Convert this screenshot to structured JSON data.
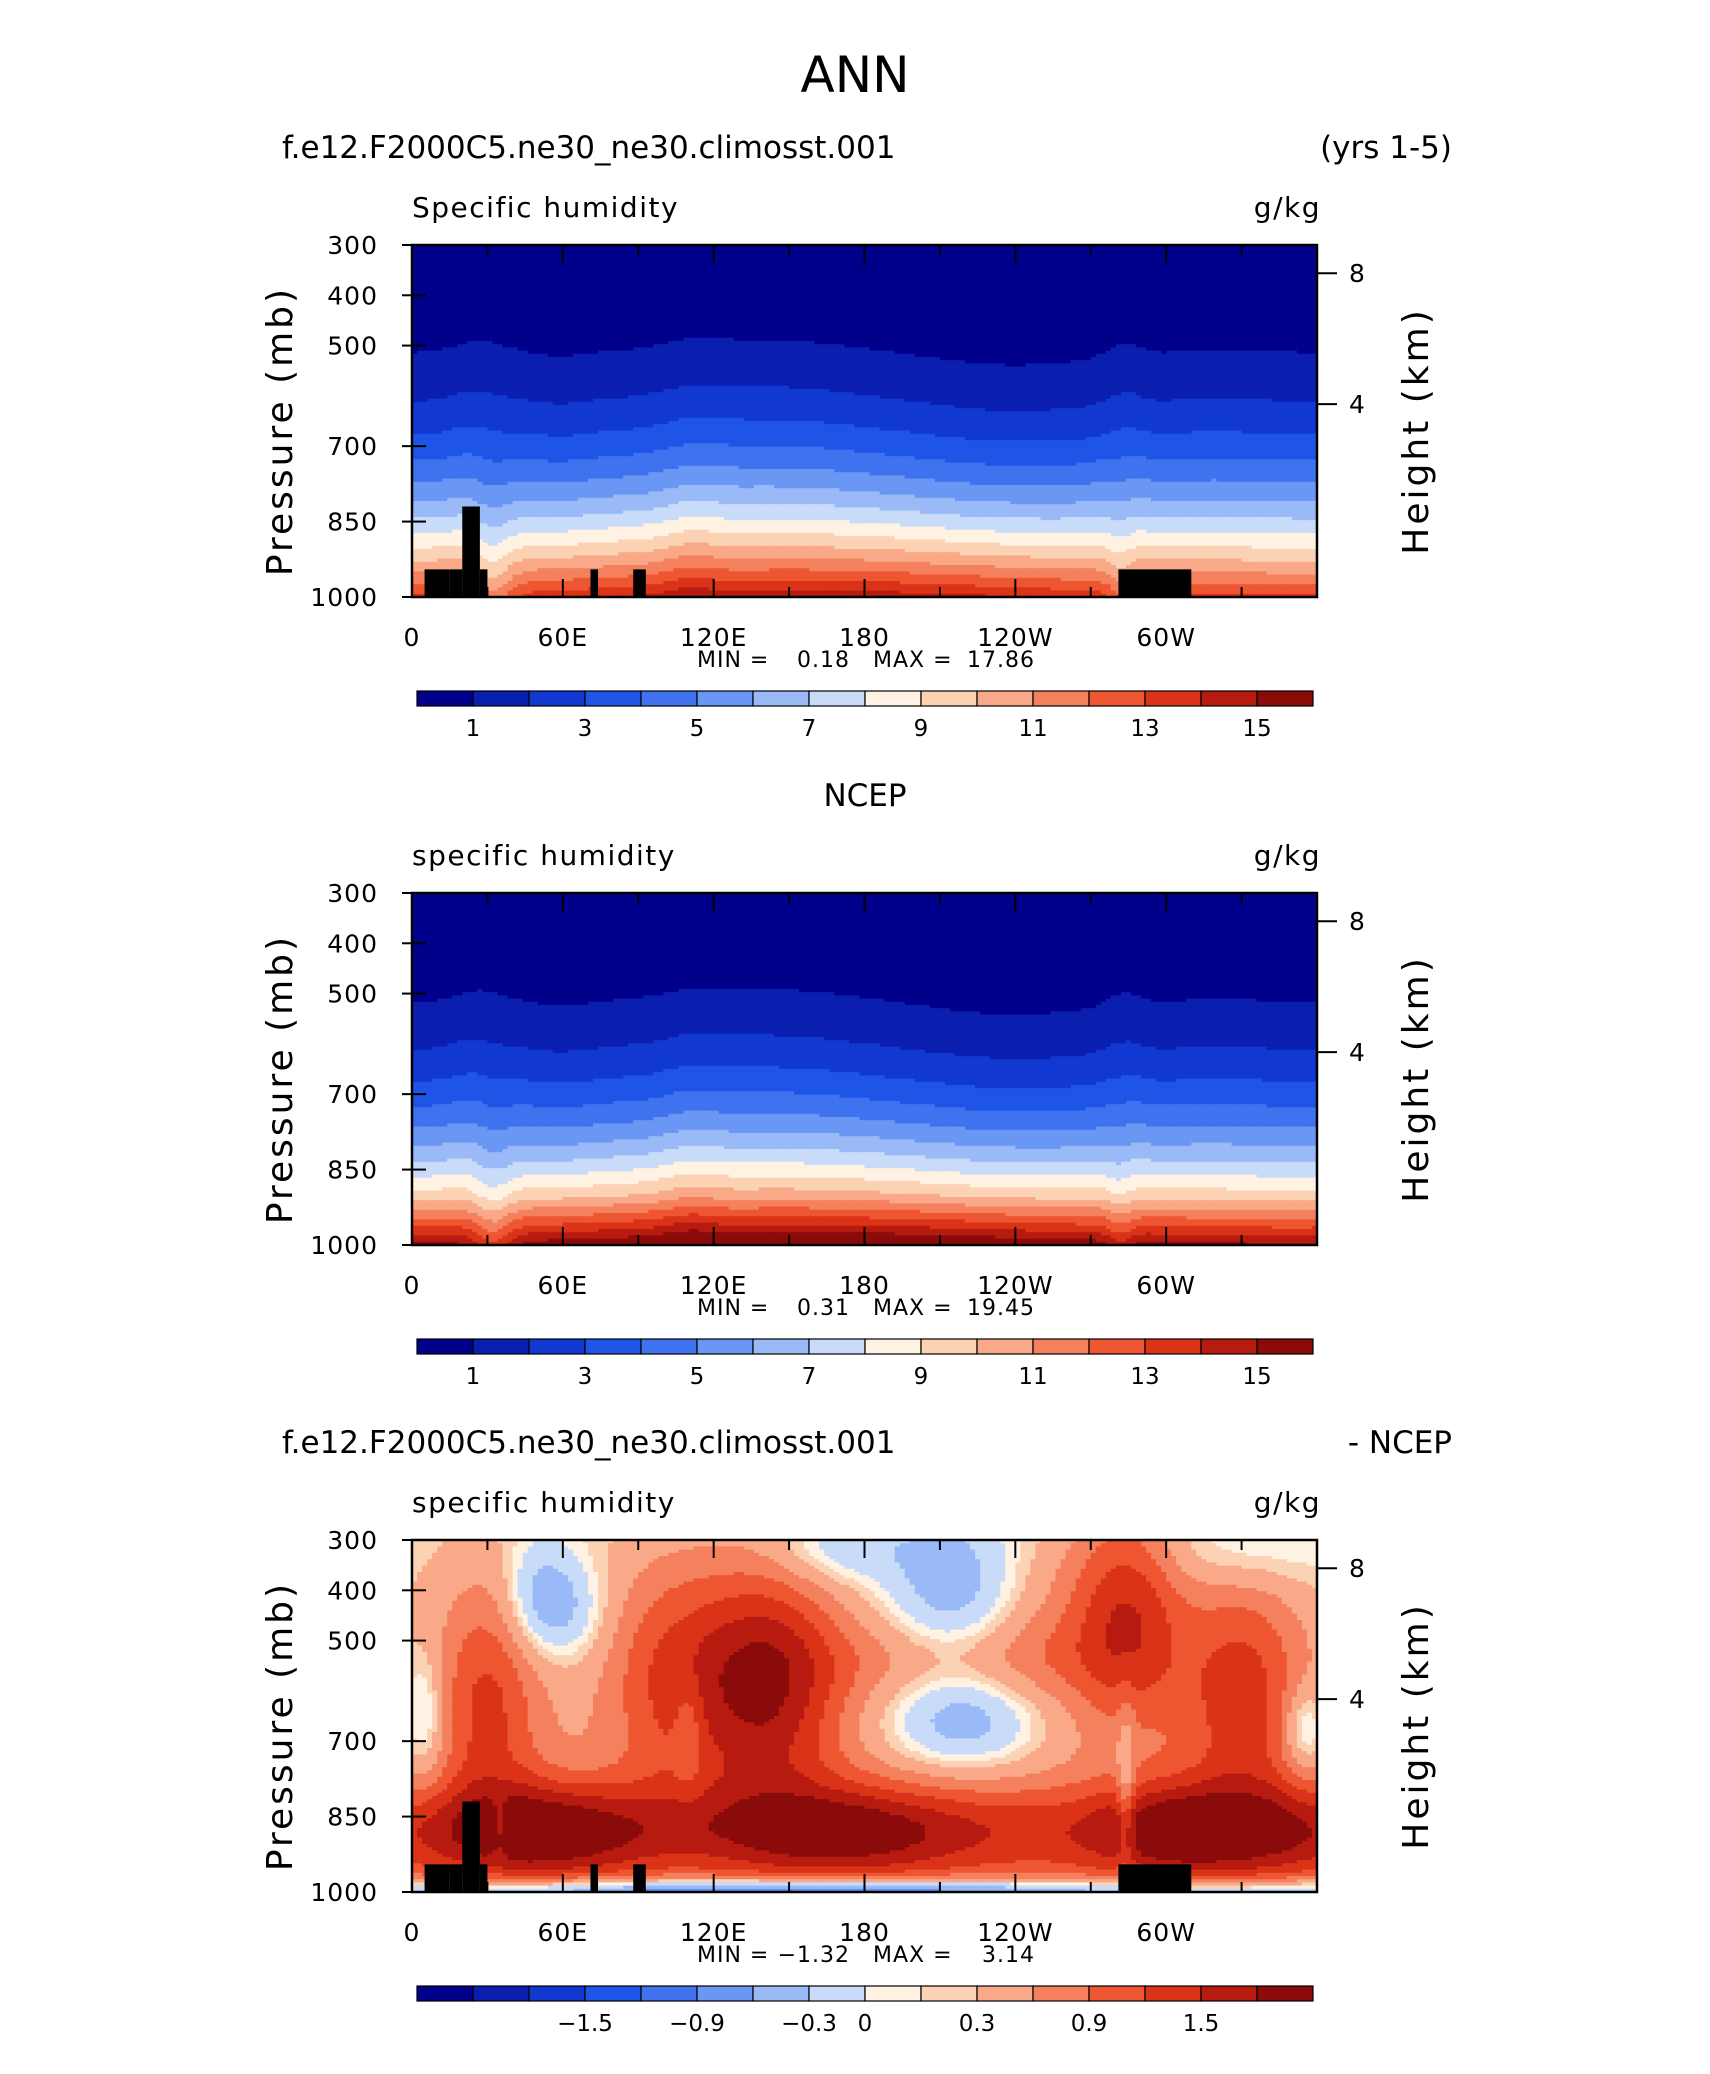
{
  "figure": {
    "title": "ANN"
  },
  "chart_data": [
    {
      "type": "heatmap",
      "header_left": "f.e12.F2000C5.ne30_ne30.climosst.001",
      "header_right": "(yrs 1-5)",
      "title": "Specific humidity",
      "units": "g/kg",
      "ylabel": "Pressure (mb)",
      "ylabel_right": "Height (km)",
      "y_ticks": [
        "300",
        "400",
        "500",
        "700",
        "850",
        "1000"
      ],
      "y_tick_values": [
        300,
        400,
        500,
        700,
        850,
        1000
      ],
      "y_right_ticks": [
        "8",
        "4"
      ],
      "y_right_tick_values": [
        8,
        4
      ],
      "x_ticks": [
        "0",
        "60E",
        "120E",
        "180",
        "120W",
        "60W"
      ],
      "x_tick_values": [
        0,
        60,
        120,
        180,
        240,
        300
      ],
      "xlim": [
        0,
        360
      ],
      "ylim": [
        300,
        1000
      ],
      "min_label": "MIN =",
      "min_value": "0.18",
      "max_label": "MAX =",
      "max_value": "17.86",
      "min": 0.18,
      "max": 17.86,
      "field": "model",
      "colorbar": {
        "levels": [
          0,
          1,
          2,
          3,
          4,
          5,
          6,
          7,
          8,
          9,
          10,
          11,
          12,
          13,
          14,
          15,
          16
        ],
        "labels": [
          "1",
          "3",
          "5",
          "7",
          "9",
          "11",
          "13",
          "15"
        ],
        "label_levels": [
          1,
          3,
          5,
          7,
          9,
          11,
          13,
          15
        ]
      },
      "mask_rects": [
        [
          5,
          945,
          15,
          1000
        ],
        [
          15,
          945,
          20,
          1000
        ],
        [
          20,
          820,
          27,
          1000
        ],
        [
          27,
          945,
          30,
          1000
        ],
        [
          71,
          945,
          74,
          1000
        ],
        [
          88,
          945,
          93,
          1000
        ],
        [
          281,
          945,
          289,
          1000
        ],
        [
          289,
          945,
          310,
          1000
        ]
      ]
    },
    {
      "type": "heatmap",
      "header_left": "",
      "header_center": "NCEP",
      "header_right": "",
      "title": "specific humidity",
      "units": "g/kg",
      "ylabel": "Pressure (mb)",
      "ylabel_right": "Height (km)",
      "y_ticks": [
        "300",
        "400",
        "500",
        "700",
        "850",
        "1000"
      ],
      "y_tick_values": [
        300,
        400,
        500,
        700,
        850,
        1000
      ],
      "y_right_ticks": [
        "8",
        "4"
      ],
      "y_right_tick_values": [
        8,
        4
      ],
      "x_ticks": [
        "0",
        "60E",
        "120E",
        "180",
        "120W",
        "60W"
      ],
      "x_tick_values": [
        0,
        60,
        120,
        180,
        240,
        300
      ],
      "xlim": [
        0,
        360
      ],
      "ylim": [
        300,
        1000
      ],
      "min_label": "MIN =",
      "min_value": "0.31",
      "max_label": "MAX =",
      "max_value": "19.45",
      "min": 0.31,
      "max": 19.45,
      "field": "obs",
      "colorbar": {
        "levels": [
          0,
          1,
          2,
          3,
          4,
          5,
          6,
          7,
          8,
          9,
          10,
          11,
          12,
          13,
          14,
          15,
          16
        ],
        "labels": [
          "1",
          "3",
          "5",
          "7",
          "9",
          "11",
          "13",
          "15"
        ],
        "label_levels": [
          1,
          3,
          5,
          7,
          9,
          11,
          13,
          15
        ]
      },
      "mask_rects": []
    },
    {
      "type": "heatmap",
      "header_left": "f.e12.F2000C5.ne30_ne30.climosst.001",
      "header_right": "- NCEP",
      "title": "specific humidity",
      "units": "g/kg",
      "ylabel": "Pressure (mb)",
      "ylabel_right": "Height (km)",
      "y_ticks": [
        "300",
        "400",
        "500",
        "700",
        "850",
        "1000"
      ],
      "y_tick_values": [
        300,
        400,
        500,
        700,
        850,
        1000
      ],
      "y_right_ticks": [
        "8",
        "4"
      ],
      "y_right_tick_values": [
        8,
        4
      ],
      "x_ticks": [
        "0",
        "60E",
        "120E",
        "180",
        "120W",
        "60W"
      ],
      "x_tick_values": [
        0,
        60,
        120,
        180,
        240,
        300
      ],
      "xlim": [
        0,
        360
      ],
      "ylim": [
        300,
        1000
      ],
      "min_label": "MIN =",
      "min_value": "−1.32",
      "max_label": "MAX =",
      "max_value": "3.14",
      "min": -1.32,
      "max": 3.14,
      "field": "diff",
      "colorbar": {
        "levels": [
          -2.4,
          -2.1,
          -1.8,
          -1.5,
          -1.2,
          -0.9,
          -0.6,
          -0.3,
          0,
          0.15,
          0.3,
          0.6,
          0.9,
          1.2,
          1.5,
          1.8,
          2.1
        ],
        "labels": [
          "−1.5",
          "−0.9",
          "−0.3",
          "0",
          "0.3",
          "0.9",
          "1.5"
        ],
        "label_levels": [
          -1.5,
          -0.9,
          -0.3,
          0,
          0.3,
          0.9,
          1.5
        ]
      },
      "mask_rects": [
        [
          5,
          945,
          15,
          1000
        ],
        [
          15,
          945,
          20,
          1000
        ],
        [
          20,
          820,
          27,
          1000
        ],
        [
          27,
          945,
          30,
          1000
        ],
        [
          71,
          945,
          74,
          1000
        ],
        [
          88,
          945,
          93,
          1000
        ],
        [
          281,
          945,
          289,
          1000
        ],
        [
          289,
          945,
          310,
          1000
        ]
      ]
    }
  ],
  "palette": [
    "#00008a",
    "#0a1fb0",
    "#1238d2",
    "#1f55e6",
    "#3f72ee",
    "#6a96f4",
    "#9ab9f7",
    "#c8dcfa",
    "#fff2e3",
    "#fcd2b5",
    "#f9a988",
    "#f5805e",
    "#ee5632",
    "#da3318",
    "#b71b10",
    "#8b0a0a"
  ]
}
